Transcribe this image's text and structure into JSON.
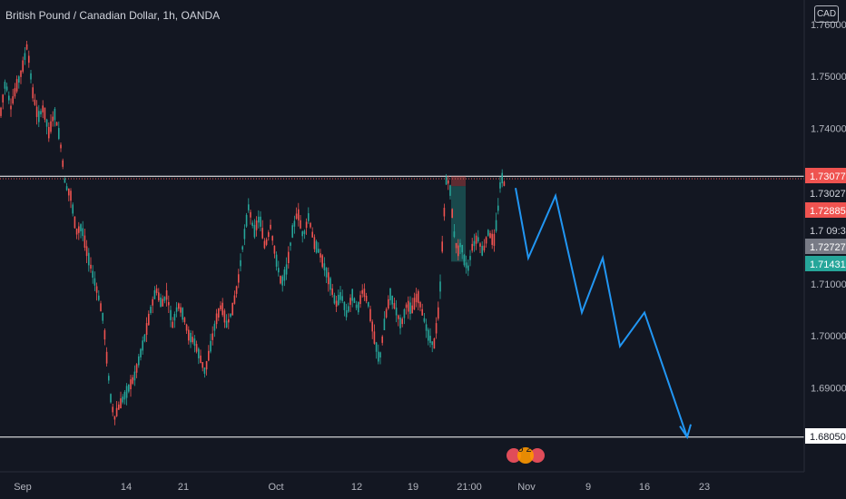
{
  "header": {
    "title": "British Pound / Canadian Dollar, 1h, OANDA",
    "currency": "CAD"
  },
  "events": {
    "badge": "5 2"
  },
  "colors": {
    "background": "#131722",
    "up": "#26a69a",
    "down": "#ef5350",
    "projection": "#2196f3",
    "level_line": "#ffffff"
  },
  "chart_data": {
    "type": "candlestick",
    "symbol": "GBPCAD",
    "timeframe": "1h",
    "x_ticks": [
      "Sep",
      "14",
      "21",
      "Oct",
      "12",
      "19",
      "21:00",
      "Nov",
      "9",
      "16",
      "23"
    ],
    "y_ticks": [
      "1.76000",
      "1.75000",
      "1.74000",
      "1.72000",
      "1.71000",
      "1.70000",
      "1.69000"
    ],
    "ylim": [
      1.6735,
      1.7635
    ],
    "price_labels": [
      {
        "value": "1.73077",
        "bg": "#ef5350",
        "fg": "#ffffff"
      },
      {
        "value": "1.73027",
        "bg": "#131722",
        "fg": "#d1d4dc"
      },
      {
        "value": "1.72885",
        "bg": "#ef5350",
        "fg": "#ffffff"
      },
      {
        "value": "1.7 09:39",
        "bg": "#131722",
        "fg": "#d1d4dc"
      },
      {
        "value": "1.72727",
        "bg": "#787b86",
        "fg": "#ffffff"
      },
      {
        "value": "1.71431",
        "bg": "#26a69a",
        "fg": "#ffffff"
      },
      {
        "value": "1.68050",
        "bg": "#ffffff",
        "fg": "#131722"
      }
    ],
    "horizontal_levels": [
      {
        "value": 1.73077,
        "style": "solid"
      },
      {
        "value": 1.73027,
        "style": "dotted"
      },
      {
        "value": 1.6805,
        "style": "solid"
      }
    ],
    "price_path": [
      [
        0,
        1.742
      ],
      [
        6,
        1.749
      ],
      [
        12,
        1.744
      ],
      [
        18,
        1.748
      ],
      [
        24,
        1.751
      ],
      [
        30,
        1.756
      ],
      [
        36,
        1.747
      ],
      [
        42,
        1.742
      ],
      [
        48,
        1.744
      ],
      [
        54,
        1.739
      ],
      [
        60,
        1.743
      ],
      [
        66,
        1.738
      ],
      [
        72,
        1.729
      ],
      [
        78,
        1.727
      ],
      [
        84,
        1.72
      ],
      [
        90,
        1.721
      ],
      [
        96,
        1.716
      ],
      [
        102,
        1.712
      ],
      [
        108,
        1.708
      ],
      [
        114,
        1.703
      ],
      [
        118,
        1.695
      ],
      [
        122,
        1.688
      ],
      [
        126,
        1.684
      ],
      [
        130,
        1.686
      ],
      [
        136,
        1.688
      ],
      [
        142,
        1.69
      ],
      [
        148,
        1.692
      ],
      [
        154,
        1.696
      ],
      [
        160,
        1.7
      ],
      [
        166,
        1.705
      ],
      [
        172,
        1.709
      ],
      [
        178,
        1.706
      ],
      [
        184,
        1.708
      ],
      [
        190,
        1.702
      ],
      [
        196,
        1.706
      ],
      [
        202,
        1.704
      ],
      [
        208,
        1.7
      ],
      [
        214,
        1.699
      ],
      [
        220,
        1.696
      ],
      [
        226,
        1.693
      ],
      [
        232,
        1.698
      ],
      [
        238,
        1.703
      ],
      [
        244,
        1.706
      ],
      [
        250,
        1.702
      ],
      [
        256,
        1.705
      ],
      [
        262,
        1.71
      ],
      [
        268,
        1.718
      ],
      [
        274,
        1.725
      ],
      [
        280,
        1.72
      ],
      [
        286,
        1.723
      ],
      [
        292,
        1.717
      ],
      [
        298,
        1.721
      ],
      [
        304,
        1.715
      ],
      [
        310,
        1.71
      ],
      [
        316,
        1.713
      ],
      [
        322,
        1.72
      ],
      [
        328,
        1.724
      ],
      [
        334,
        1.719
      ],
      [
        340,
        1.723
      ],
      [
        346,
        1.718
      ],
      [
        352,
        1.716
      ],
      [
        358,
        1.713
      ],
      [
        364,
        1.71
      ],
      [
        370,
        1.706
      ],
      [
        376,
        1.708
      ],
      [
        382,
        1.704
      ],
      [
        388,
        1.708
      ],
      [
        394,
        1.705
      ],
      [
        400,
        1.709
      ],
      [
        406,
        1.706
      ],
      [
        412,
        1.7
      ],
      [
        418,
        1.695
      ],
      [
        424,
        1.703
      ],
      [
        430,
        1.708
      ],
      [
        436,
        1.705
      ],
      [
        442,
        1.702
      ],
      [
        448,
        1.706
      ],
      [
        454,
        1.705
      ],
      [
        460,
        1.708
      ],
      [
        466,
        1.704
      ],
      [
        472,
        1.7
      ],
      [
        478,
        1.698
      ],
      [
        484,
        1.706
      ],
      [
        488,
        1.72
      ],
      [
        492,
        1.731
      ],
      [
        496,
        1.728
      ],
      [
        500,
        1.72
      ],
      [
        504,
        1.716
      ],
      [
        508,
        1.718
      ],
      [
        512,
        1.714
      ],
      [
        516,
        1.713
      ],
      [
        520,
        1.717
      ],
      [
        526,
        1.719
      ],
      [
        532,
        1.716
      ],
      [
        538,
        1.72
      ],
      [
        544,
        1.718
      ],
      [
        548,
        1.723
      ],
      [
        552,
        1.731
      ],
      [
        556,
        1.729
      ]
    ],
    "trade_box": {
      "x_from": 497,
      "x_to": 513,
      "entry": 1.72885,
      "stop": 1.73077,
      "target": 1.71431
    },
    "projection_path": [
      [
        568,
        1.7285
      ],
      [
        582,
        1.715
      ],
      [
        612,
        1.727
      ],
      [
        641,
        1.7045
      ],
      [
        664,
        1.715
      ],
      [
        683,
        1.698
      ],
      [
        710,
        1.7045
      ],
      [
        757,
        1.6805
      ]
    ]
  }
}
